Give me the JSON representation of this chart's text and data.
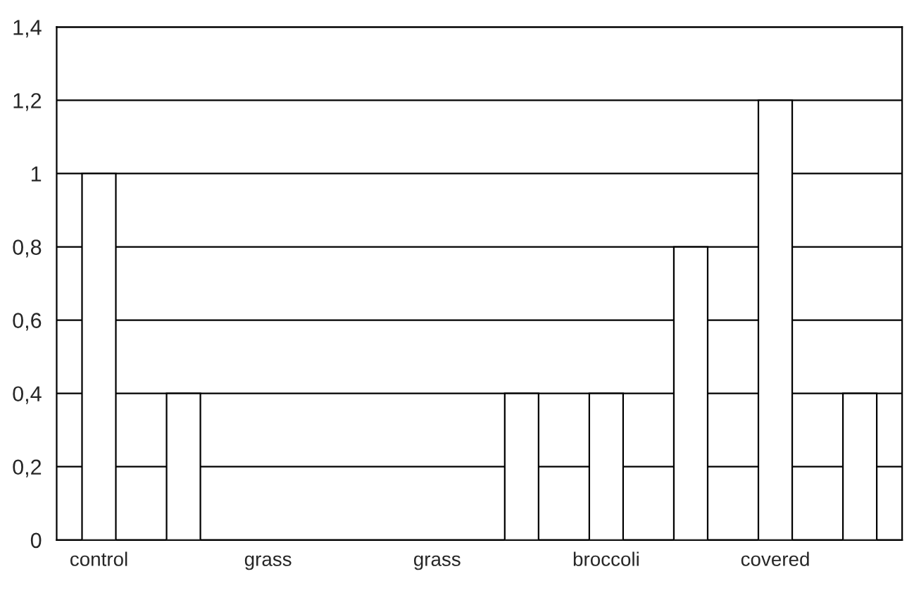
{
  "chart_data": {
    "type": "bar",
    "categories": [
      "control",
      null,
      "grass",
      null,
      "grass",
      null,
      "broccoli",
      null,
      "covered",
      null
    ],
    "values": [
      1,
      0.4,
      0,
      0,
      0,
      0.4,
      0.4,
      0.8,
      1.2,
      0.4
    ],
    "color": "#ffffff",
    "ylim": [
      0,
      1.4
    ],
    "yticks": [
      0,
      {
        "value": 0.2,
        "label": "0,2"
      },
      {
        "value": 0.4,
        "label": "0,4"
      },
      {
        "value": 0.6,
        "label": "0,6"
      },
      {
        "value": 0.8,
        "label": "0,8"
      },
      1,
      {
        "value": 1.2,
        "label": "1,2"
      },
      {
        "value": 1.4,
        "label": "1,4"
      }
    ],
    "grid": "y",
    "legend": false
  }
}
